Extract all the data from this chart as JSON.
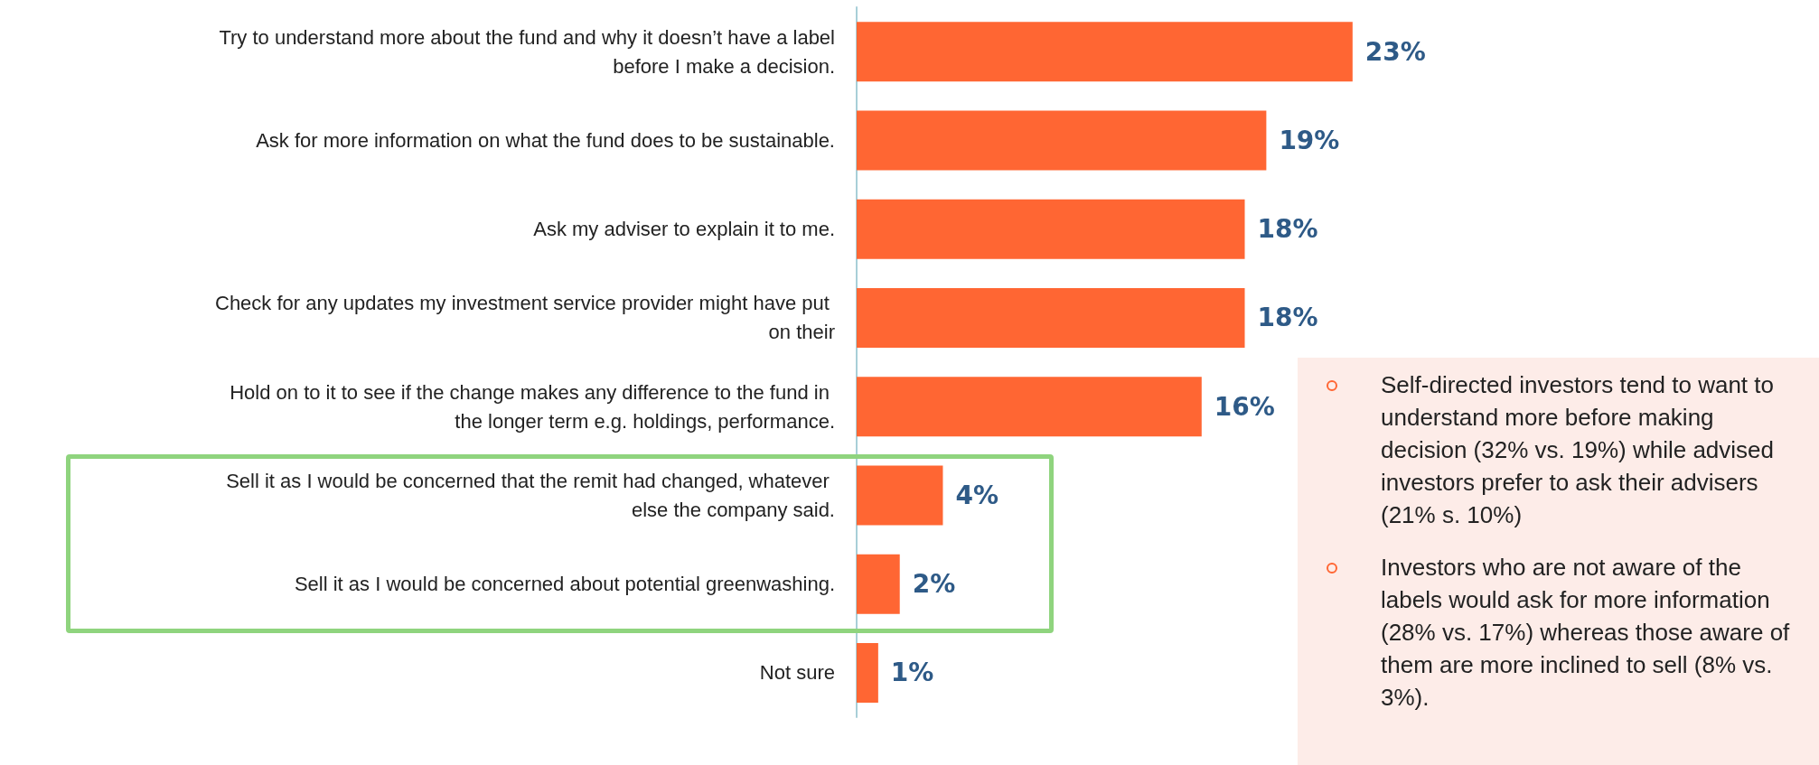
{
  "chart_data": {
    "type": "bar",
    "orientation": "horizontal",
    "categories": [
      "Try to understand more about the fund and why it doesn’t have a label before I make a decision.",
      "Ask for more information on what the fund does to be sustainable.",
      "Ask my adviser to explain it to me.",
      "Check for any updates my investment service provider might have put on their",
      "Hold on to it to see if the change makes any difference to the fund in the longer term e.g. holdings, performance.",
      "Sell it as I would be concerned that the remit had changed, whatever else the company said.",
      "Sell it as I would be concerned about potential greenwashing.",
      "Not sure"
    ],
    "values": [
      23,
      19,
      18,
      18,
      16,
      4,
      2,
      1
    ],
    "color": "#ff6633",
    "value_labels": [
      "23%",
      "19%",
      "18%",
      "18%",
      "16%",
      "4%",
      "2%",
      "1%"
    ],
    "annotations": [
      "Self-directed investors tend to want to understand more before making decision (32% vs. 19%) while advised investors prefer to ask their advisers (21% s. 10%)",
      "Investors who are not aware of the labels would ask for more information (28% vs. 17%) whereas those aware of them are more inclined to sell (8% vs. 3%)."
    ]
  }
}
